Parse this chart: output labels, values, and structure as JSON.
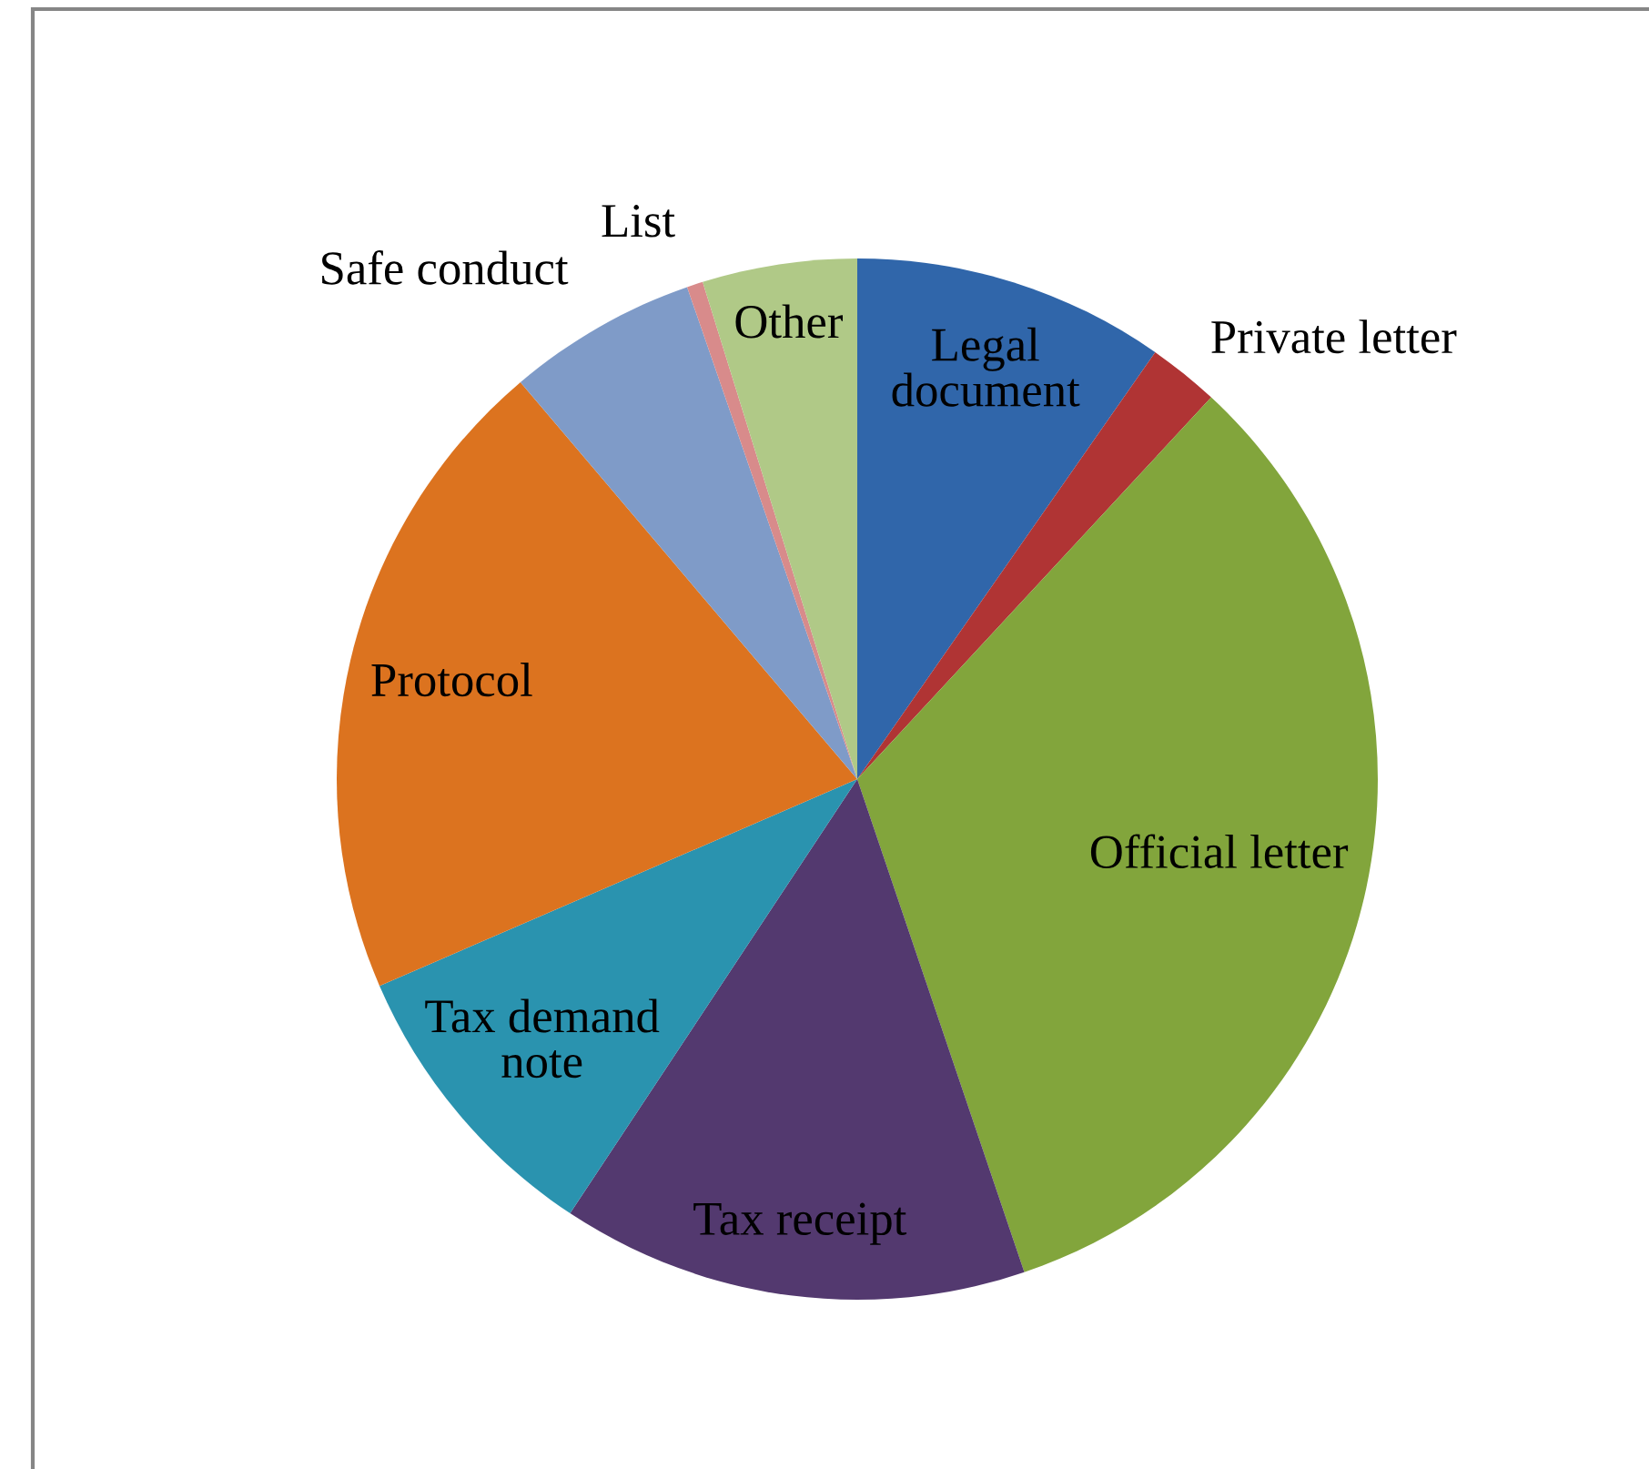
{
  "chart_data": {
    "type": "pie",
    "categories": [
      "Legal document",
      "Private letter",
      "Official letter",
      "Tax receipt",
      "Tax demand note",
      "Protocol",
      "Safe conduct",
      "List",
      "Other"
    ],
    "values": [
      9.7,
      2.2,
      32.9,
      14.5,
      9.2,
      20.3,
      5.9,
      0.5,
      4.8
    ],
    "colors": [
      "#3066aa",
      "#b03434",
      "#82a53c",
      "#53396f",
      "#2a93af",
      "#dc731f",
      "#7f9bc8",
      "#d88b8b",
      "#b0c987"
    ]
  }
}
